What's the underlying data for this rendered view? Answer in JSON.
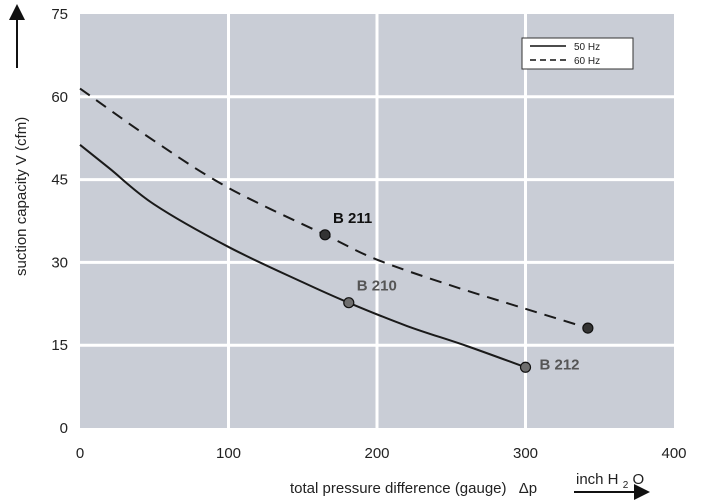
{
  "chart_data": {
    "type": "line",
    "xlabel": "total pressure difference (gauge)",
    "xlabel_symbol": "Δp",
    "x_unit": {
      "base": "inch H",
      "sub": "2",
      "tail": "O"
    },
    "ylabel": "suction capacity V (cfm)",
    "xlim": [
      0,
      400
    ],
    "ylim": [
      0,
      75
    ],
    "x_ticks": [
      0,
      100,
      200,
      300,
      400
    ],
    "y_ticks": [
      0,
      15,
      30,
      45,
      60,
      75
    ],
    "grid": true,
    "plot_background": "#c9cdd6",
    "grid_color": "#ffffff",
    "legend_position": "top-right",
    "series": [
      {
        "name": "50 Hz",
        "style": "solid",
        "color": "#1a1a1a",
        "x": [
          0,
          20,
          50,
          100,
          150,
          180,
          220,
          260,
          300
        ],
        "y": [
          51.3,
          47,
          40.5,
          32.8,
          26.4,
          22.8,
          18.5,
          14.9,
          11
        ]
      },
      {
        "name": "60 Hz",
        "style": "dashed",
        "color": "#1a1a1a",
        "x": [
          0,
          50,
          100,
          165,
          200,
          250,
          300,
          342
        ],
        "y": [
          61.5,
          52,
          43.5,
          35,
          30.5,
          25.8,
          21.6,
          18.1
        ]
      }
    ],
    "points": [
      {
        "label": "B 211",
        "x": 165,
        "y": 35,
        "fill": "#333333",
        "label_color": "#111111"
      },
      {
        "label": "B 210",
        "x": 181,
        "y": 22.7,
        "fill": "#6e6e6e",
        "label_color": "#555555"
      },
      {
        "label": "B 212",
        "x": 300,
        "y": 11,
        "fill": "#6e6e6e",
        "label_color": "#555555"
      },
      {
        "label": "",
        "x": 342,
        "y": 18.1,
        "fill": "#333333",
        "label_color": "#111111"
      }
    ]
  }
}
